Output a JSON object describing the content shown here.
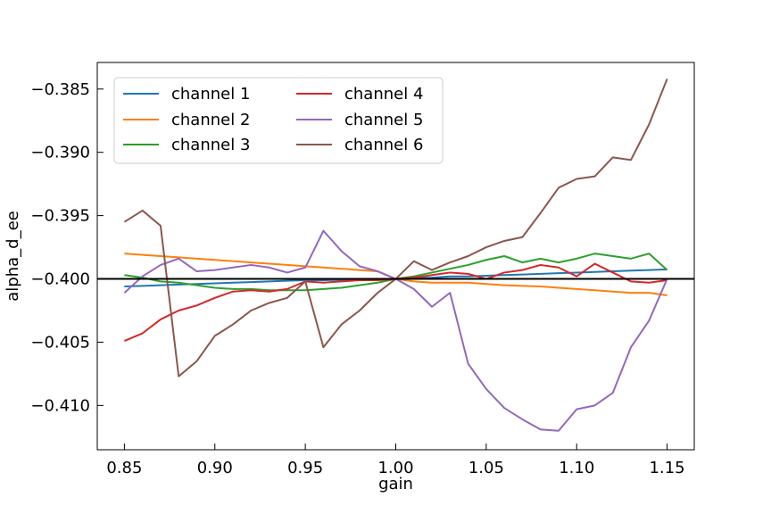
{
  "chart_data": {
    "type": "line",
    "title": "",
    "xlabel": "gain",
    "ylabel": "alpha_d_ee",
    "xlim": [
      0.835,
      1.165
    ],
    "ylim": [
      -0.4135,
      -0.3829
    ],
    "xticks": [
      0.85,
      0.9,
      0.95,
      1.0,
      1.05,
      1.1,
      1.15
    ],
    "xtick_labels": [
      "0.85",
      "0.90",
      "0.95",
      "1.00",
      "1.05",
      "1.10",
      "1.15"
    ],
    "yticks": [
      -0.385,
      -0.39,
      -0.395,
      -0.4,
      -0.405,
      -0.41
    ],
    "ytick_labels": [
      "−0.385",
      "−0.390",
      "−0.395",
      "−0.400",
      "−0.405",
      "−0.410"
    ],
    "reference_line": -0.4,
    "legend_position": "upper-left",
    "legend_columns": 2,
    "grid": false,
    "x": [
      0.85,
      0.86,
      0.87,
      0.88,
      0.89,
      0.9,
      0.91,
      0.92,
      0.93,
      0.94,
      0.95,
      0.96,
      0.97,
      0.98,
      0.99,
      1.0,
      1.01,
      1.02,
      1.03,
      1.04,
      1.05,
      1.06,
      1.07,
      1.08,
      1.09,
      1.1,
      1.11,
      1.12,
      1.13,
      1.14,
      1.15
    ],
    "series": [
      {
        "name": "channel 1",
        "color": "#1f77b4",
        "values": [
          -0.4006,
          -0.40055,
          -0.4005,
          -0.40045,
          -0.4004,
          -0.40035,
          -0.4003,
          -0.40025,
          -0.4002,
          -0.40015,
          -0.4001,
          -0.4001,
          -0.40008,
          -0.40006,
          -0.40003,
          -0.4,
          -0.39995,
          -0.3999,
          -0.3998,
          -0.3998,
          -0.39975,
          -0.3997,
          -0.39965,
          -0.3996,
          -0.39955,
          -0.3995,
          -0.39945,
          -0.3994,
          -0.39935,
          -0.3993,
          -0.39925
        ]
      },
      {
        "name": "channel 2",
        "color": "#ff7f0e",
        "values": [
          -0.398,
          -0.3981,
          -0.3982,
          -0.3983,
          -0.3984,
          -0.3985,
          -0.3986,
          -0.3987,
          -0.3988,
          -0.3989,
          -0.399,
          -0.3991,
          -0.3992,
          -0.3993,
          -0.3994,
          -0.4,
          -0.4002,
          -0.4003,
          -0.4003,
          -0.4003,
          -0.4004,
          -0.4005,
          -0.40055,
          -0.4006,
          -0.4007,
          -0.4008,
          -0.4009,
          -0.401,
          -0.4011,
          -0.4011,
          -0.4013
        ]
      },
      {
        "name": "channel 3",
        "color": "#2ca02c",
        "values": [
          -0.3997,
          -0.3999,
          -0.4002,
          -0.4003,
          -0.4005,
          -0.4007,
          -0.4008,
          -0.4008,
          -0.4009,
          -0.4009,
          -0.4009,
          -0.4008,
          -0.4007,
          -0.4005,
          -0.4003,
          -0.4,
          -0.3998,
          -0.3995,
          -0.3992,
          -0.3989,
          -0.3985,
          -0.3982,
          -0.3987,
          -0.3984,
          -0.3987,
          -0.3984,
          -0.398,
          -0.3982,
          -0.3984,
          -0.398,
          -0.3993
        ]
      },
      {
        "name": "channel 4",
        "color": "#d62728",
        "values": [
          -0.4049,
          -0.4043,
          -0.4032,
          -0.4025,
          -0.4021,
          -0.4015,
          -0.401,
          -0.4009,
          -0.401,
          -0.4008,
          -0.4002,
          -0.4003,
          -0.4002,
          -0.4001,
          -0.4001,
          -0.4,
          -0.3999,
          -0.3997,
          -0.3995,
          -0.3996,
          -0.4,
          -0.3995,
          -0.3993,
          -0.3989,
          -0.3991,
          -0.3998,
          -0.3988,
          -0.3995,
          -0.4002,
          -0.4003,
          -0.4001
        ]
      },
      {
        "name": "channel 5",
        "color": "#9467bd",
        "values": [
          -0.4011,
          -0.3998,
          -0.3989,
          -0.3984,
          -0.3994,
          -0.3993,
          -0.3991,
          -0.3989,
          -0.3991,
          -0.3995,
          -0.3991,
          -0.3962,
          -0.3978,
          -0.399,
          -0.3994,
          -0.4,
          -0.4008,
          -0.4022,
          -0.4011,
          -0.4067,
          -0.4087,
          -0.4102,
          -0.4111,
          -0.4119,
          -0.412,
          -0.4103,
          -0.41,
          -0.409,
          -0.4054,
          -0.4033,
          -0.4
        ]
      },
      {
        "name": "channel 6",
        "color": "#8c564b",
        "values": [
          -0.3955,
          -0.3946,
          -0.3958,
          -0.4077,
          -0.4065,
          -0.4045,
          -0.4036,
          -0.4025,
          -0.4019,
          -0.4015,
          -0.4002,
          -0.4054,
          -0.4036,
          -0.4025,
          -0.4011,
          -0.4,
          -0.3986,
          -0.3993,
          -0.3987,
          -0.3982,
          -0.3975,
          -0.397,
          -0.3967,
          -0.3948,
          -0.3928,
          -0.3921,
          -0.3919,
          -0.3904,
          -0.3906,
          -0.3878,
          -0.3842
        ]
      }
    ]
  }
}
